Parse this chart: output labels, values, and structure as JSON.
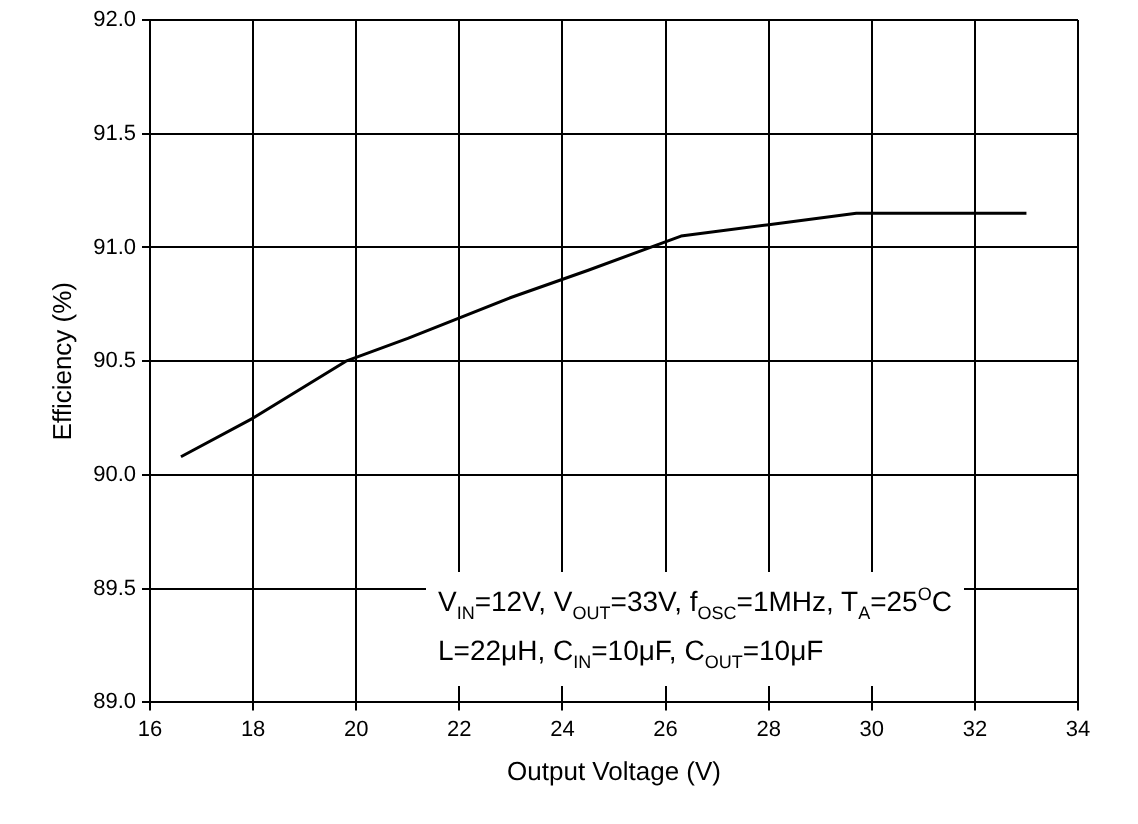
{
  "chart_data": {
    "type": "line",
    "xlabel": "Output Voltage (V)",
    "ylabel": "Efficiency (%)",
    "x": [
      16.6,
      18,
      19.8,
      21,
      23,
      24.5,
      26.3,
      28,
      29.7,
      31,
      33
    ],
    "series": [
      {
        "color": "#000000",
        "values": [
          90.08,
          90.25,
          90.5,
          90.6,
          90.78,
          90.9,
          91.05,
          91.1,
          91.15,
          91.15,
          91.15
        ]
      }
    ],
    "xlim": [
      16,
      34
    ],
    "xticks": [
      16,
      18,
      20,
      22,
      24,
      26,
      28,
      30,
      32,
      34
    ],
    "ylim": [
      89,
      92
    ],
    "yticks": [
      {
        "value": 89,
        "label": "89.0"
      },
      {
        "value": 89.5,
        "label": "89.5"
      },
      {
        "value": 90,
        "label": "90.0"
      },
      {
        "value": 90.5,
        "label": "90.5"
      },
      {
        "value": 91,
        "label": "91.0"
      },
      {
        "value": 91.5,
        "label": "91.5"
      },
      {
        "value": 92,
        "label": "92.0"
      }
    ],
    "grid": true,
    "legend": false,
    "marker": "none",
    "line_style": "solid",
    "annotations": [
      "V$_{IN}$=12V, V$_{OUT}$=33V, f$_{OSC}$=1MHz, T$_{A}$=25$^{O}$C",
      "L=22μH, C$_{IN}$=10μF, C$_{OUT}$=10μF"
    ]
  }
}
